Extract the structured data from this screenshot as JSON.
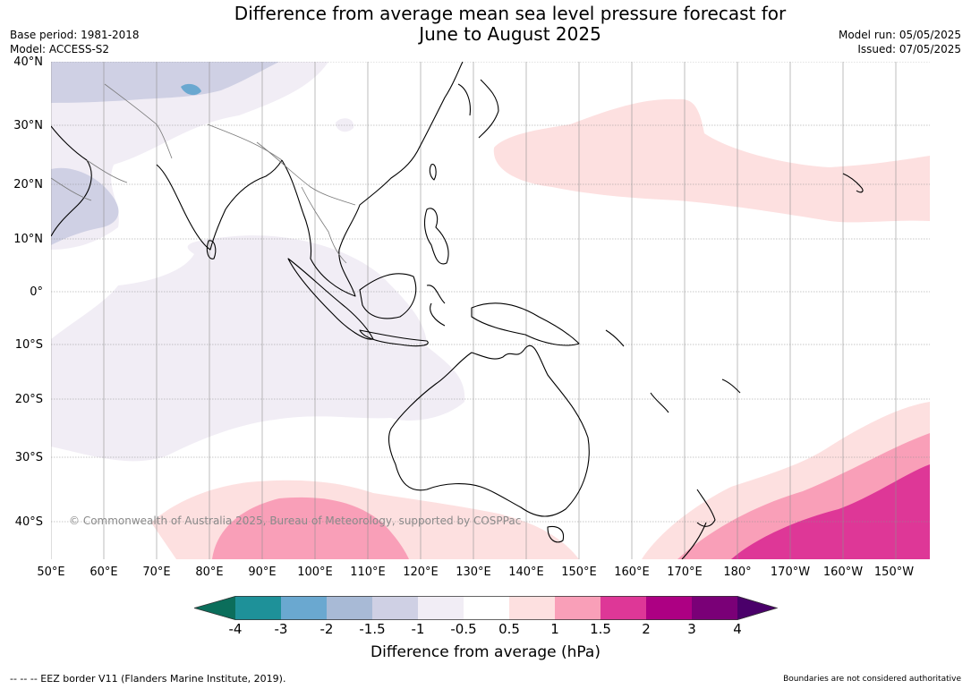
{
  "title_line1": "Difference from average mean sea level pressure forecast for",
  "title_line2": "June to August 2025",
  "meta": {
    "base_period": "Base period: 1981-2018",
    "model": "Model: ACCESS-S2",
    "model_run": "Model run: 05/05/2025",
    "issued": "Issued: 07/05/2025"
  },
  "map": {
    "lat_labels": [
      "40°N",
      "30°N",
      "20°N",
      "10°N",
      "0°",
      "10°S",
      "20°S",
      "30°S",
      "40°S"
    ],
    "lon_labels": [
      "50°E",
      "60°E",
      "70°E",
      "80°E",
      "90°E",
      "100°E",
      "110°E",
      "120°E",
      "130°E",
      "140°E",
      "150°E",
      "160°E",
      "170°E",
      "180°",
      "170°W",
      "160°W",
      "150°W"
    ],
    "copyright": "© Commonwealth of Australia 2025, Bureau of Meteorology, supported by COSPPac"
  },
  "colorbar": {
    "title": "Difference from average (hPa)",
    "ticks": [
      "-4",
      "-3",
      "-2",
      "-1.5",
      "-1",
      "-0.5",
      "0.5",
      "1",
      "1.5",
      "2",
      "3",
      "4"
    ],
    "colors": {
      "below_-4": "#0b6e5b",
      "-4_to_-3": "#1e9199",
      "-3_to_-2": "#6aa8d0",
      "-2_to_-1.5": "#a8bad6",
      "-1.5_to_-1": "#cfd0e4",
      "-1_to_-0.5": "#f1edf5",
      "-0.5_to_0.5": "#ffffff",
      "0.5_to_1": "#fde0e0",
      "1_to_1.5": "#f99fb8",
      "1.5_to_2": "#de3797",
      "2_to_3": "#ad0083",
      "3_to_4": "#7a0077",
      "above_4": "#4a006a"
    }
  },
  "footer": {
    "eez": "--  --  -- EEZ border V11 (Flanders Marine Institute, 2019).",
    "boundaries": "Boundaries are not considered authoritative"
  }
}
